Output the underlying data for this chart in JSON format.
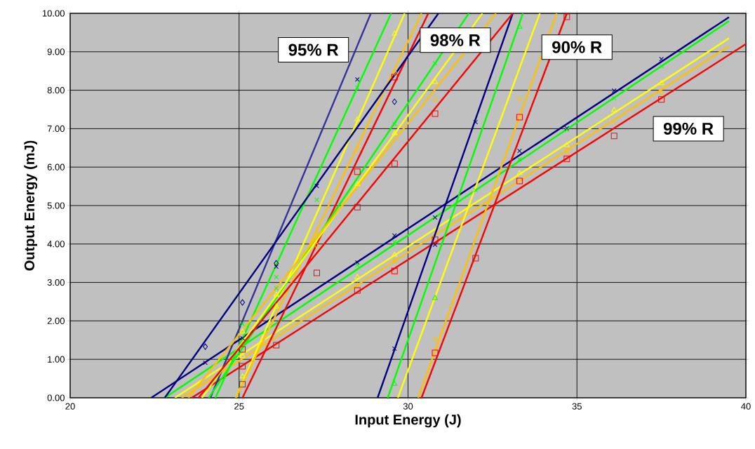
{
  "chart_data": {
    "type": "line",
    "xlabel": "Input Energy (J)",
    "ylabel": "Output Energy (mJ)",
    "xlim": [
      20,
      40
    ],
    "ylim": [
      0,
      10
    ],
    "grid": true,
    "xticks": [
      20,
      25,
      30,
      35,
      40
    ],
    "yticks": [
      {
        "value": 0,
        "label": "0.00"
      },
      {
        "value": 1,
        "label": "1.00"
      },
      {
        "value": 2,
        "label": "2.00"
      },
      {
        "value": 3,
        "label": "3.00"
      },
      {
        "value": 4,
        "label": "4.00"
      },
      {
        "value": 5,
        "label": "5.00"
      },
      {
        "value": 6,
        "label": "6.00"
      },
      {
        "value": 7,
        "label": "7.00"
      },
      {
        "value": 8,
        "label": "8.00"
      },
      {
        "value": 9,
        "label": "9.00"
      },
      {
        "value": 10,
        "label": "10.00"
      }
    ],
    "annotations": [
      "95% R",
      "98% R",
      "90% R",
      "99% R"
    ],
    "series": [
      {
        "color": "#000080",
        "x": [
          22.4,
          39.5
        ],
        "values": [
          0,
          9.9
        ]
      },
      {
        "color": "#00ff00",
        "x": [
          22.8,
          39.5
        ],
        "values": [
          0,
          9.8
        ]
      },
      {
        "color": "#ffff00",
        "x": [
          23.1,
          39.5
        ],
        "values": [
          0,
          9.35
        ]
      },
      {
        "color": "#ffc000",
        "x": [
          23.3,
          39.5
        ],
        "values": [
          0,
          9.15
        ]
      },
      {
        "color": "#ff0000",
        "x": [
          23.6,
          40
        ],
        "values": [
          0,
          9.2
        ]
      },
      {
        "color": "#000080",
        "x": [
          29.1,
          33.1
        ],
        "values": [
          0,
          10
        ]
      },
      {
        "color": "#00ff00",
        "x": [
          29.4,
          33.4
        ],
        "values": [
          0,
          10
        ]
      },
      {
        "color": "#ffff00",
        "x": [
          29.7,
          33.9
        ],
        "values": [
          0,
          10
        ]
      },
      {
        "color": "#ffc000",
        "x": [
          30.3,
          34.4
        ],
        "values": [
          0,
          10
        ]
      },
      {
        "color": "#ff0000",
        "x": [
          30.4,
          34.7
        ],
        "values": [
          0,
          10
        ]
      },
      {
        "color": "#333399",
        "x": [
          24.15,
          28.9
        ],
        "values": [
          0,
          10
        ]
      },
      {
        "color": "#00ff00",
        "x": [
          24.3,
          29.5
        ],
        "values": [
          0,
          10
        ]
      },
      {
        "color": "#ffff00",
        "x": [
          24.9,
          29.9
        ],
        "values": [
          0,
          10
        ]
      },
      {
        "color": "#ffc000",
        "x": [
          24.9,
          30.4
        ],
        "values": [
          0,
          10
        ]
      },
      {
        "color": "#ff0000",
        "x": [
          25.1,
          30.6
        ],
        "values": [
          0,
          10
        ]
      },
      {
        "color": "#000080",
        "x": [
          22.8,
          30.9
        ],
        "values": [
          0,
          10
        ]
      },
      {
        "color": "#00ff00",
        "x": [
          24.1,
          31.8
        ],
        "values": [
          0,
          10
        ]
      },
      {
        "color": "#ffff00",
        "x": [
          23.9,
          32.2
        ],
        "values": [
          0,
          10
        ]
      },
      {
        "color": "#ffc000",
        "x": [
          23.5,
          32.6
        ],
        "values": [
          0,
          10
        ]
      },
      {
        "color": "#ff0000",
        "x": [
          23.8,
          33.1
        ],
        "values": [
          0,
          10
        ]
      },
      {
        "type": "scatter",
        "marker": "cross",
        "color": "#000080",
        "x": [
          24.0,
          25.1,
          26.1,
          27.3,
          28.5,
          28.5,
          29.6,
          30.8,
          33.3,
          34.7,
          36.1,
          37.5,
          29.6,
          30.8,
          32.0
        ],
        "values": [
          0.91,
          1.55,
          3.41,
          5.51,
          8.28,
          3.52,
          4.22,
          4.69,
          6.42,
          7.01,
          7.99,
          8.81,
          1.28,
          3.98,
          7.17
        ]
      },
      {
        "type": "scatter",
        "marker": "diamond",
        "color": "#000080",
        "x": [
          24.0,
          25.1,
          26.1,
          29.6
        ],
        "values": [
          1.33,
          2.48,
          3.5,
          7.7
        ]
      },
      {
        "type": "scatter",
        "marker": "cross",
        "color": "#00ff00",
        "x": [
          25.1,
          26.1,
          26.1,
          27.3,
          28.5,
          29.6,
          30.8,
          28.5,
          29.6,
          32.0,
          33.3,
          34.7,
          36.1,
          37.5
        ],
        "values": [
          1.92,
          2.85,
          3.14,
          5.15,
          8.07,
          7.12,
          8.7,
          3.45,
          4.05,
          5.4,
          6.2,
          6.97,
          7.79,
          8.63
        ]
      },
      {
        "type": "scatter",
        "marker": "triangle",
        "color": "#00ff00",
        "x": [
          29.6,
          30.8,
          33.3
        ],
        "values": [
          0.36,
          2.59,
          9.65
        ]
      },
      {
        "type": "scatter",
        "marker": "triangle",
        "color": "#ffff00",
        "x": [
          25.1,
          25.1,
          25.1,
          26.1,
          26.1,
          28.5,
          29.6,
          28.5,
          29.6,
          30.8,
          28.5,
          29.6,
          33.3,
          34.7,
          36.1,
          37.5
        ],
        "values": [
          0.55,
          1.08,
          1.72,
          2.37,
          2.68,
          7.24,
          9.47,
          5.55,
          6.88,
          8.21,
          3.14,
          3.72,
          5.84,
          6.57,
          7.48,
          8.18
        ]
      },
      {
        "type": "scatter",
        "marker": "diamond",
        "color": "#ffc000",
        "x": [
          27.3,
          27.3,
          28.5,
          29.6,
          28.5,
          29.6,
          30.8,
          30.8,
          33.3,
          34.7,
          36.1,
          37.5
        ],
        "values": [
          3.96,
          4.29,
          6.46,
          8.47,
          2.92,
          3.56,
          7.76,
          1.53,
          7.76,
          6.42,
          7.19,
          7.94
        ]
      },
      {
        "type": "scatter",
        "marker": "square",
        "color": "#ff0000",
        "x": [
          25.1,
          25.1,
          25.1,
          26.1,
          27.3,
          28.5,
          28.5,
          29.6,
          29.6,
          30.8,
          28.5,
          29.6,
          30.8,
          30.8,
          32.0,
          33.3,
          33.3,
          34.7,
          34.7,
          36.1,
          37.5
        ],
        "values": [
          0.35,
          0.82,
          1.26,
          1.37,
          3.25,
          4.96,
          5.88,
          6.09,
          8.34,
          7.39,
          2.79,
          3.3,
          4.11,
          1.17,
          3.63,
          7.3,
          5.64,
          6.22,
          9.91,
          6.81,
          7.76
        ]
      }
    ]
  }
}
